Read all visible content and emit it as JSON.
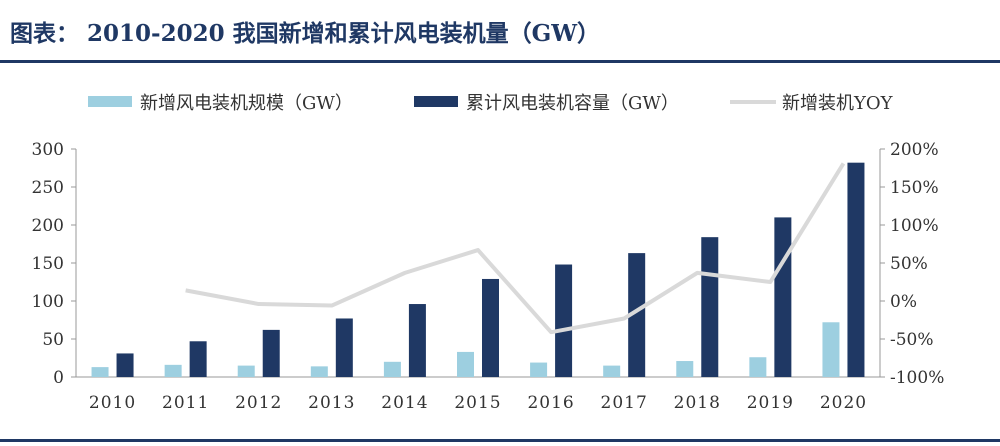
{
  "header": {
    "title": "图表： 2010-2020 我国新增和累计风电装机量（GW）"
  },
  "colors": {
    "rule": "#1f3864",
    "new_bar": "#9dcfe0",
    "cum_bar": "#1f3864",
    "yoy_line": "#d9d9d9"
  },
  "chart_data": {
    "type": "bar",
    "categories": [
      "2010",
      "2011",
      "2012",
      "2013",
      "2014",
      "2015",
      "2016",
      "2017",
      "2018",
      "2019",
      "2020"
    ],
    "series": [
      {
        "name": "新增风电装机规模（GW）",
        "type": "bar",
        "axis": "left",
        "values": [
          13,
          16,
          15,
          14,
          20,
          33,
          19,
          15,
          21,
          26,
          72
        ]
      },
      {
        "name": "累计风电装机容量（GW）",
        "type": "bar",
        "axis": "left",
        "values": [
          31,
          47,
          62,
          77,
          96,
          129,
          148,
          163,
          184,
          210,
          282
        ]
      },
      {
        "name": "新增装机YOY",
        "type": "line",
        "axis": "right",
        "values": [
          null,
          14,
          -4,
          -6,
          37,
          67,
          -41,
          -23,
          37,
          25,
          181
        ]
      }
    ],
    "y_left": {
      "ylim": [
        0,
        300
      ],
      "ticks": [
        "0",
        "50",
        "100",
        "150",
        "200",
        "250",
        "300"
      ]
    },
    "y_right": {
      "ylim": [
        -100,
        200
      ],
      "ticks": [
        "-100%",
        "-50%",
        "0%",
        "50%",
        "100%",
        "150%",
        "200%"
      ]
    },
    "legend_placement": "top",
    "grid": false
  }
}
